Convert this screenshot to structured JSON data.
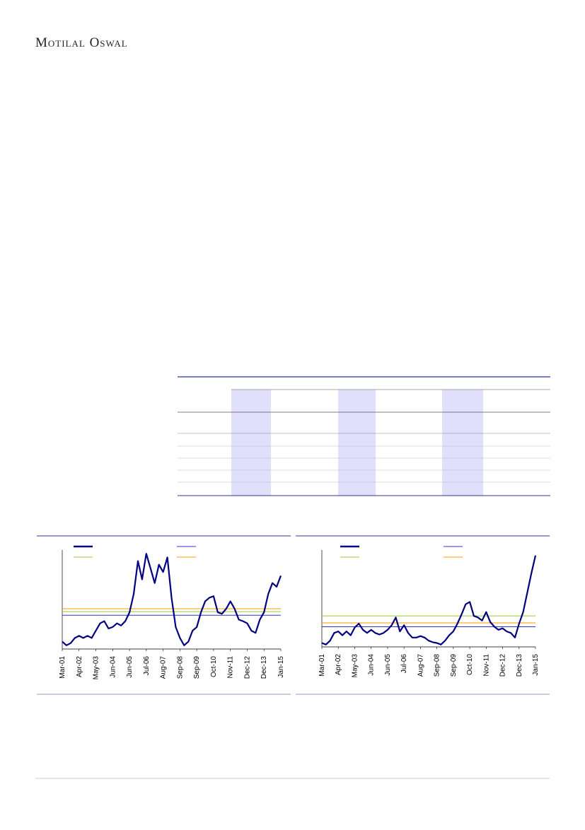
{
  "header": {
    "logo": "Motilal Oswal"
  },
  "chart_data": [
    {
      "type": "line",
      "categories": [
        "Mar-01",
        null,
        null,
        null,
        "Apr-02",
        null,
        null,
        null,
        "May-03",
        null,
        null,
        null,
        "Jun-04",
        null,
        null,
        null,
        "Jun-05",
        null,
        null,
        null,
        "Jul-06",
        null,
        null,
        null,
        "Aug-07",
        null,
        null,
        null,
        "Sep-08",
        null,
        null,
        null,
        "Sep-09",
        null,
        null,
        null,
        "Oct-10",
        null,
        null,
        null,
        "Nov-11",
        null,
        null,
        null,
        "Dec-12",
        null,
        null,
        null,
        "Dec-13",
        null,
        null,
        null,
        "Jan-15"
      ],
      "series": [
        {
          "color": "#000080",
          "values": [
            10,
            5,
            8,
            15,
            18,
            15,
            18,
            15,
            25,
            35,
            38,
            28,
            30,
            35,
            32,
            38,
            50,
            75,
            120,
            95,
            130,
            110,
            90,
            115,
            105,
            125,
            70,
            30,
            15,
            5,
            10,
            25,
            30,
            50,
            65,
            70,
            72,
            50,
            48,
            55,
            65,
            55,
            40,
            38,
            35,
            25,
            22,
            40,
            50,
            75,
            90,
            85,
            100
          ]
        }
      ],
      "reference_lines": [
        {
          "color": "#3333cc",
          "value": 46
        },
        {
          "color": "#99cc33",
          "value": 51
        },
        {
          "color": "#ff9900",
          "value": 55
        }
      ],
      "ylim": [
        0,
        135
      ]
    },
    {
      "type": "line",
      "categories": [
        "Mar-01",
        null,
        null,
        null,
        "Apr-02",
        null,
        null,
        null,
        "May-03",
        null,
        null,
        null,
        "Jun-04",
        null,
        null,
        null,
        "Jun-05",
        null,
        null,
        null,
        "Jul-06",
        null,
        null,
        null,
        "Aug-07",
        null,
        null,
        null,
        "Sep-08",
        null,
        null,
        null,
        "Sep-09",
        null,
        null,
        null,
        "Oct-10",
        null,
        null,
        null,
        "Nov-11",
        null,
        null,
        null,
        "Dec-12",
        null,
        null,
        null,
        "Dec-13",
        null,
        null,
        null,
        "Jan-15"
      ],
      "series": [
        {
          "color": "#000080",
          "values": [
            5,
            3,
            8,
            18,
            20,
            15,
            20,
            15,
            25,
            30,
            22,
            18,
            22,
            18,
            16,
            18,
            22,
            28,
            38,
            20,
            28,
            18,
            12,
            12,
            14,
            12,
            8,
            6,
            5,
            3,
            8,
            15,
            20,
            30,
            42,
            55,
            58,
            40,
            38,
            34,
            45,
            32,
            26,
            22,
            24,
            20,
            18,
            12,
            30,
            45,
            70,
            95,
            118
          ]
        }
      ],
      "reference_lines": [
        {
          "color": "#3333cc",
          "value": 26
        },
        {
          "color": "#ff9900",
          "value": 31
        },
        {
          "color": "#99cc33",
          "value": 40
        }
      ],
      "ylim": [
        0,
        125
      ]
    }
  ]
}
